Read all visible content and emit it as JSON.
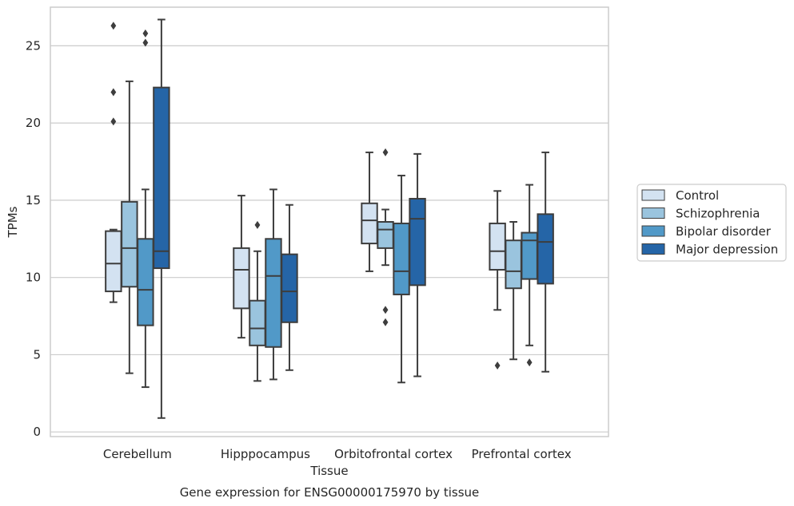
{
  "chart_data": {
    "type": "boxplot",
    "title": "",
    "caption": "Gene expression for ENSG00000175970 by tissue",
    "xlabel": "Tissue",
    "ylabel": "TPMs",
    "ylim": [
      -0.3,
      27.5
    ],
    "yticks": [
      0,
      5,
      10,
      15,
      20,
      25
    ],
    "grid": "horizontal",
    "legend_position": "right",
    "categories": [
      "Cerebellum",
      "Hipppocampus",
      "Orbitofrontal cortex",
      "Prefrontal cortex"
    ],
    "series": [
      {
        "name": "Control",
        "color": "#d3e2f1",
        "boxes": [
          {
            "whislo": 8.4,
            "q1": 9.1,
            "med": 10.9,
            "q3": 13.0,
            "whishi": 13.1,
            "fliers": [
              26.3,
              22.0,
              20.1
            ]
          },
          {
            "whislo": 6.1,
            "q1": 8.0,
            "med": 10.5,
            "q3": 11.9,
            "whishi": 15.3,
            "fliers": []
          },
          {
            "whislo": 10.4,
            "q1": 12.2,
            "med": 13.7,
            "q3": 14.8,
            "whishi": 18.1,
            "fliers": []
          },
          {
            "whislo": 7.9,
            "q1": 10.5,
            "med": 11.7,
            "q3": 13.5,
            "whishi": 15.6,
            "fliers": [
              4.3
            ]
          }
        ]
      },
      {
        "name": "Schizophrenia",
        "color": "#9ac4de",
        "boxes": [
          {
            "whislo": 3.8,
            "q1": 9.4,
            "med": 11.9,
            "q3": 14.9,
            "whishi": 22.7,
            "fliers": []
          },
          {
            "whislo": 3.3,
            "q1": 5.6,
            "med": 6.7,
            "q3": 8.5,
            "whishi": 11.7,
            "fliers": [
              13.4
            ]
          },
          {
            "whislo": 10.8,
            "q1": 11.9,
            "med": 13.1,
            "q3": 13.6,
            "whishi": 14.4,
            "fliers": [
              18.1,
              7.9,
              7.1
            ]
          },
          {
            "whislo": 4.7,
            "q1": 9.3,
            "med": 10.4,
            "q3": 12.4,
            "whishi": 13.6,
            "fliers": []
          }
        ]
      },
      {
        "name": "Bipolar disorder",
        "color": "#5199c8",
        "boxes": [
          {
            "whislo": 2.9,
            "q1": 6.9,
            "med": 9.2,
            "q3": 12.5,
            "whishi": 15.7,
            "fliers": [
              25.8,
              25.2
            ]
          },
          {
            "whislo": 3.4,
            "q1": 5.5,
            "med": 10.1,
            "q3": 12.5,
            "whishi": 15.7,
            "fliers": []
          },
          {
            "whislo": 3.2,
            "q1": 8.9,
            "med": 10.4,
            "q3": 13.5,
            "whishi": 16.6,
            "fliers": []
          },
          {
            "whislo": 5.6,
            "q1": 9.9,
            "med": 12.4,
            "q3": 12.9,
            "whishi": 16.0,
            "fliers": [
              4.5
            ]
          }
        ]
      },
      {
        "name": "Major depression",
        "color": "#2565a7",
        "boxes": [
          {
            "whislo": 0.9,
            "q1": 10.6,
            "med": 11.7,
            "q3": 22.3,
            "whishi": 26.7,
            "fliers": []
          },
          {
            "whislo": 4.0,
            "q1": 7.1,
            "med": 9.1,
            "q3": 11.5,
            "whishi": 14.7,
            "fliers": []
          },
          {
            "whislo": 3.6,
            "q1": 9.5,
            "med": 13.8,
            "q3": 15.1,
            "whishi": 18.0,
            "fliers": []
          },
          {
            "whislo": 3.9,
            "q1": 9.6,
            "med": 12.3,
            "q3": 14.1,
            "whishi": 18.1,
            "fliers": []
          }
        ]
      }
    ]
  }
}
